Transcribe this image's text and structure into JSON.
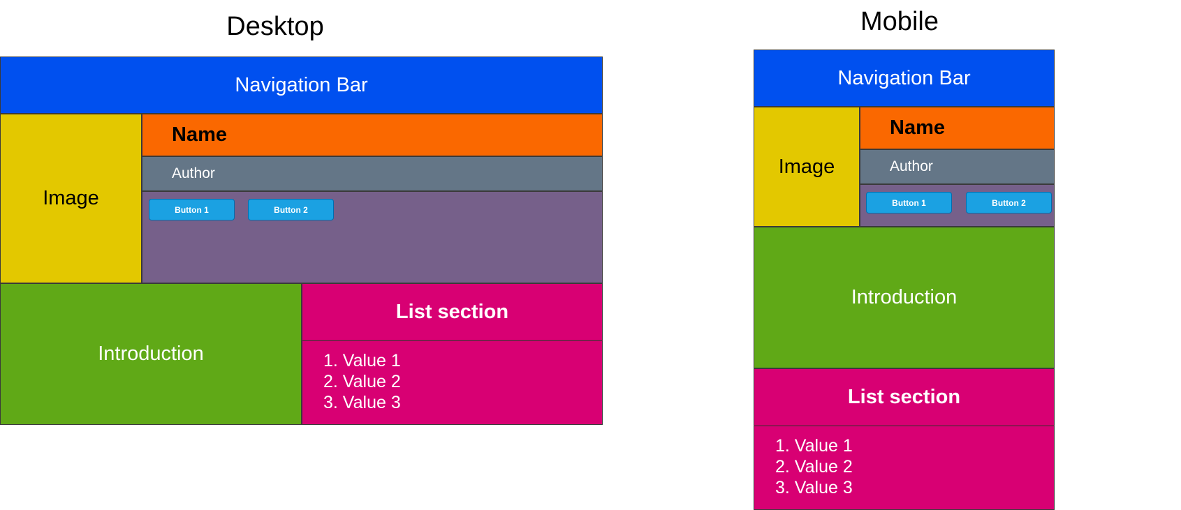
{
  "colors": {
    "nav": "#0050ef",
    "image": "#e3c800",
    "name": "#fa6800",
    "author": "#647687",
    "actions": "#76608a",
    "intro": "#60a917",
    "list": "#d80073",
    "button": "#1ba1e2"
  },
  "desktop": {
    "heading": "Desktop",
    "nav": "Navigation Bar",
    "image": "Image",
    "name": "Name",
    "author": "Author",
    "button1": "Button 1",
    "button2": "Button 2",
    "intro": "Introduction",
    "list_title": "List section",
    "list_items": [
      "1. Value 1",
      "2. Value 2",
      "3. Value 3"
    ]
  },
  "mobile": {
    "heading": "Mobile",
    "nav": "Navigation Bar",
    "image": "Image",
    "name": "Name",
    "author": "Author",
    "button1": "Button 1",
    "button2": "Button 2",
    "intro": "Introduction",
    "list_title": "List section",
    "list_items": [
      "1. Value 1",
      "2. Value 2",
      "3. Value 3"
    ]
  }
}
